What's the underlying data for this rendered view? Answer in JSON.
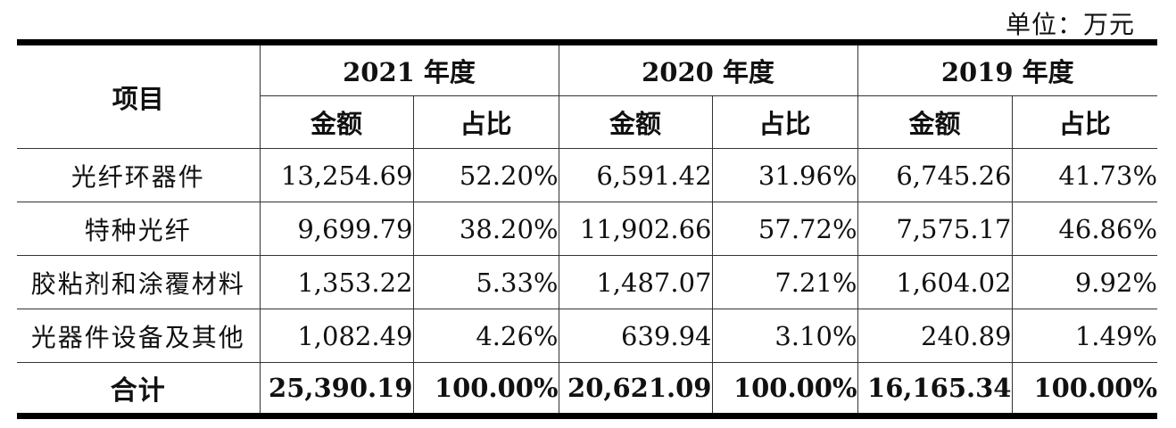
{
  "unit": "单位：万元",
  "header": {
    "item": "项目",
    "years": [
      "2021 年度",
      "2020 年度",
      "2019 年度"
    ],
    "amount": "金额",
    "ratio": "占比"
  },
  "rows": [
    {
      "name": "光纤环器件",
      "values": [
        "13,254.69",
        "52.20%",
        "6,591.42",
        "31.96%",
        "6,745.26",
        "41.73%"
      ]
    },
    {
      "name": "特种光纤",
      "values": [
        "9,699.79",
        "38.20%",
        "11,902.66",
        "57.72%",
        "7,575.17",
        "46.86%"
      ]
    },
    {
      "name": "胶粘剂和涂覆材料",
      "values": [
        "1,353.22",
        "5.33%",
        "1,487.07",
        "7.21%",
        "1,604.02",
        "9.92%"
      ]
    },
    {
      "name": "光器件设备及其他",
      "values": [
        "1,082.49",
        "4.26%",
        "639.94",
        "3.10%",
        "240.89",
        "1.49%"
      ]
    }
  ],
  "total": {
    "name": "合计",
    "values": [
      "25,390.19",
      "100.00%",
      "20,621.09",
      "100.00%",
      "16,165.34",
      "100.00%"
    ]
  }
}
